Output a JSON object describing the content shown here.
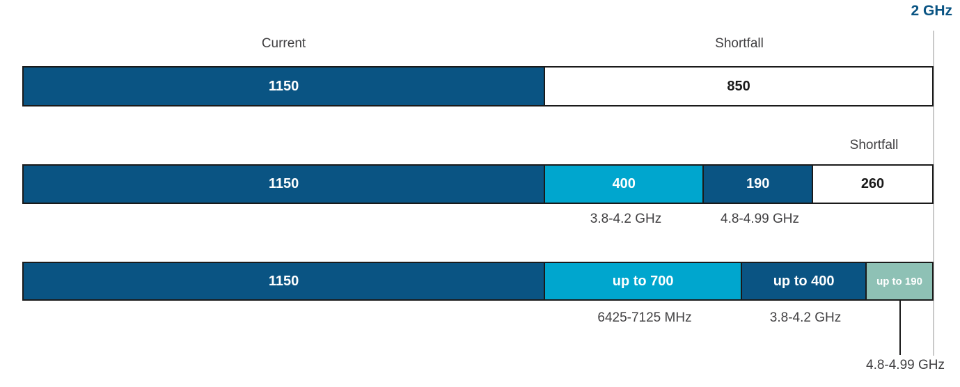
{
  "colors": {
    "dark_blue": "#0A5483",
    "cyan": "#00A6CE",
    "sage": "#8EC1B5",
    "white": "#FFFFFF",
    "bar_border": "#1A1A1A",
    "gridline_gray": "#C9C9C9",
    "label_gray": "#414042",
    "axis_label_blue": "#0A5483"
  },
  "chart_data": {
    "type": "bar",
    "orientation": "horizontal-stacked",
    "unit": "MHz",
    "axis_marker": {
      "label": "2 GHz",
      "value_mhz": 2000
    },
    "grid": "single vertical reference line at 2 GHz, right edge of bars",
    "legend_position": "none",
    "rows": [
      {
        "annotations_above": [
          {
            "text": "Current",
            "anchor": "segment-0"
          },
          {
            "text": "Shortfall",
            "anchor": "segment-1"
          }
        ],
        "segments": [
          {
            "label": "1150",
            "value": 1150,
            "color": "#0A5483",
            "text_color": "#FFFFFF",
            "width_pct": 57.4
          },
          {
            "label": "850",
            "value": 850,
            "color": "#FFFFFF",
            "text_color": "#1A1A1A",
            "width_pct": 42.6
          }
        ],
        "annotations_below": []
      },
      {
        "annotations_above": [
          {
            "text": "Shortfall",
            "anchor": "segment-3"
          }
        ],
        "segments": [
          {
            "label": "1150",
            "value": 1150,
            "color": "#0A5483",
            "text_color": "#FFFFFF",
            "width_pct": 57.4
          },
          {
            "label": "400",
            "value": 400,
            "color": "#00A6CE",
            "text_color": "#FFFFFF",
            "width_pct": 17.5
          },
          {
            "label": "190",
            "value": 190,
            "color": "#0A5483",
            "text_color": "#FFFFFF",
            "width_pct": 12.0
          },
          {
            "label": "260",
            "value": 260,
            "color": "#FFFFFF",
            "text_color": "#1A1A1A",
            "width_pct": 13.1
          }
        ],
        "annotations_below": [
          {
            "text": "3.8-4.2 GHz",
            "anchor": "segment-1"
          },
          {
            "text": "4.8-4.99 GHz",
            "anchor": "segment-2"
          }
        ]
      },
      {
        "annotations_above": [],
        "segments": [
          {
            "label": "1150",
            "value": 1150,
            "color": "#0A5483",
            "text_color": "#FFFFFF",
            "width_pct": 57.4
          },
          {
            "label": "up to 700",
            "value": 700,
            "color": "#00A6CE",
            "text_color": "#FFFFFF",
            "width_pct": 21.7
          },
          {
            "label": "up to 400",
            "value": 400,
            "color": "#0A5483",
            "text_color": "#FFFFFF",
            "width_pct": 13.7
          },
          {
            "label": "up to 190",
            "value": 190,
            "color": "#8EC1B5",
            "text_color": "#FFFFFF",
            "width_pct": 7.2
          }
        ],
        "annotations_below": [
          {
            "text": "6425-7125 MHz",
            "anchor": "segment-1"
          },
          {
            "text": "3.8-4.2 GHz",
            "anchor": "segment-2"
          }
        ],
        "callout": {
          "text": "4.8-4.99 GHz",
          "anchor": "segment-3"
        }
      }
    ]
  }
}
